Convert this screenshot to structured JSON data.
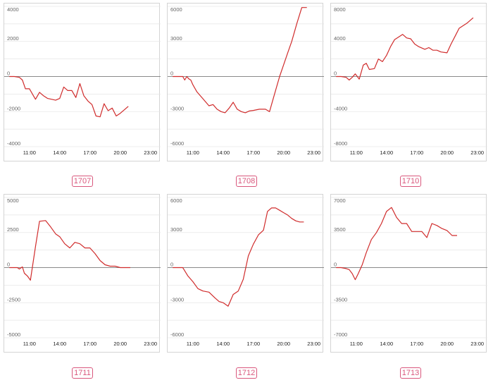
{
  "theme": {
    "line_color": "#d02c2c",
    "badge_color": "#d9577c",
    "grid_color": "#e6e6e6",
    "zero_color": "#8a8a8a"
  },
  "chart_data": [
    {
      "type": "line",
      "label": "1707",
      "ylim": [
        -4000,
        4000
      ],
      "yticks": [
        "4000",
        "2000",
        "0",
        "-2000",
        "-4000"
      ],
      "xlim": [
        8.5,
        24
      ],
      "xticks": [
        "11:00",
        "14:00",
        "17:00",
        "20:00",
        "23:00"
      ],
      "x": [
        9.0,
        9.5,
        10.0,
        10.3,
        10.6,
        11.0,
        11.3,
        11.6,
        12.0,
        12.4,
        12.8,
        13.2,
        13.6,
        14.0,
        14.4,
        14.8,
        15.2,
        15.6,
        16.0,
        16.4,
        16.8,
        17.2,
        17.6,
        18.0,
        18.4,
        18.8,
        19.2,
        19.6,
        20.0,
        20.4,
        20.8
      ],
      "y": [
        0,
        0,
        -50,
        -200,
        -700,
        -700,
        -1000,
        -1300,
        -900,
        -1100,
        -1250,
        -1300,
        -1350,
        -1250,
        -600,
        -800,
        -800,
        -1200,
        -400,
        -1100,
        -1400,
        -1600,
        -2250,
        -2300,
        -1550,
        -1950,
        -1800,
        -2250,
        -2100,
        -1900,
        -1700
      ]
    },
    {
      "type": "line",
      "label": "1708",
      "ylim": [
        -6000,
        6000
      ],
      "yticks": [
        "6000",
        "3000",
        "0",
        "-3000",
        "-6000"
      ],
      "xlim": [
        8.5,
        24
      ],
      "xticks": [
        "11:00",
        "14:00",
        "17:00",
        "20:00",
        "23:00"
      ],
      "x": [
        9.0,
        9.5,
        10.0,
        10.2,
        10.4,
        10.6,
        10.8,
        11.0,
        11.4,
        12.0,
        12.6,
        13.0,
        13.4,
        13.8,
        14.2,
        14.6,
        15.0,
        15.4,
        15.8,
        16.2,
        16.6,
        17.0,
        17.6,
        18.2,
        18.6,
        19.0,
        19.6,
        20.0,
        20.4,
        20.8,
        21.3,
        21.8,
        22.3
      ],
      "y": [
        0,
        0,
        0,
        -300,
        0,
        -200,
        -300,
        -700,
        -1300,
        -1900,
        -2500,
        -2400,
        -2800,
        -3000,
        -3100,
        -2700,
        -2200,
        -2800,
        -3000,
        -3100,
        -2950,
        -2900,
        -2800,
        -2800,
        -3000,
        -1800,
        0,
        1000,
        2000,
        3000,
        4500,
        5900,
        5900
      ]
    },
    {
      "type": "line",
      "label": "1710",
      "ylim": [
        -8000,
        8000
      ],
      "yticks": [
        "8000",
        "4000",
        "0",
        "-4000",
        "-8000"
      ],
      "xlim": [
        8.5,
        24
      ],
      "xticks": [
        "11:00",
        "14:00",
        "17:00",
        "20:00",
        "23:00"
      ],
      "x": [
        9.0,
        9.5,
        10.0,
        10.3,
        10.6,
        10.9,
        11.3,
        11.7,
        12.0,
        12.3,
        12.8,
        13.2,
        13.6,
        14.0,
        14.4,
        14.8,
        15.2,
        15.6,
        16.0,
        16.4,
        16.8,
        17.2,
        17.8,
        18.2,
        18.6,
        19.0,
        19.4,
        20.0,
        20.4,
        20.8,
        21.2,
        21.6,
        22.0,
        22.6
      ],
      "y": [
        0,
        0,
        -100,
        -400,
        -100,
        300,
        -300,
        1300,
        1500,
        800,
        900,
        2000,
        1700,
        2400,
        3400,
        4200,
        4500,
        4800,
        4400,
        4300,
        3700,
        3400,
        3100,
        3300,
        3000,
        3000,
        2800,
        2700,
        3700,
        4600,
        5500,
        5800,
        6100,
        6700
      ]
    },
    {
      "type": "line",
      "label": "1711",
      "ylim": [
        -5000,
        5000
      ],
      "yticks": [
        "5000",
        "2500",
        "0",
        "-2500",
        "-5000"
      ],
      "xlim": [
        8.5,
        24
      ],
      "xticks": [
        "11:00",
        "14:00",
        "17:00",
        "20:00",
        "23:00"
      ],
      "x": [
        9.0,
        9.4,
        9.8,
        10.0,
        10.3,
        10.5,
        10.8,
        11.1,
        11.6,
        12.0,
        12.6,
        13.1,
        13.6,
        14.0,
        14.5,
        15.0,
        15.5,
        16.0,
        16.5,
        17.0,
        17.5,
        18.0,
        18.5,
        19.0,
        19.5,
        20.0,
        20.5,
        21.0
      ],
      "y": [
        0,
        0,
        0,
        -100,
        50,
        -400,
        -600,
        -900,
        1500,
        3300,
        3350,
        2900,
        2400,
        2200,
        1700,
        1400,
        1800,
        1700,
        1400,
        1400,
        1000,
        500,
        200,
        100,
        100,
        0,
        0,
        0
      ]
    },
    {
      "type": "line",
      "label": "1712",
      "ylim": [
        -6000,
        6000
      ],
      "yticks": [
        "6000",
        "3000",
        "0",
        "-3000",
        "-6000"
      ],
      "xlim": [
        8.5,
        24
      ],
      "xticks": [
        "11:00",
        "14:00",
        "17:00",
        "20:00",
        "23:00"
      ],
      "x": [
        9.0,
        9.5,
        10.0,
        10.5,
        11.0,
        11.5,
        12.0,
        12.6,
        13.2,
        13.6,
        14.0,
        14.5,
        15.0,
        15.5,
        16.0,
        16.5,
        17.0,
        17.5,
        18.0,
        18.4,
        18.8,
        19.2,
        19.6,
        20.0,
        20.4,
        20.8,
        21.2,
        21.6,
        22.0
      ],
      "y": [
        0,
        0,
        0,
        -700,
        -1200,
        -1800,
        -2000,
        -2100,
        -2600,
        -2900,
        -3000,
        -3300,
        -2300,
        -2000,
        -1000,
        1000,
        2000,
        2800,
        3200,
        4800,
        5100,
        5100,
        4900,
        4700,
        4500,
        4200,
        4000,
        3900,
        3900
      ]
    },
    {
      "type": "line",
      "label": "1713",
      "ylim": [
        -7000,
        7000
      ],
      "yticks": [
        "7000",
        "3500",
        "0",
        "-3500",
        "-7000"
      ],
      "xlim": [
        8.5,
        24
      ],
      "xticks": [
        "11:00",
        "14:00",
        "17:00",
        "20:00",
        "23:00"
      ],
      "x": [
        9.0,
        9.5,
        10.0,
        10.3,
        10.6,
        10.9,
        11.2,
        11.6,
        12.0,
        12.5,
        13.0,
        13.5,
        14.0,
        14.5,
        15.0,
        15.5,
        16.0,
        16.5,
        17.0,
        17.5,
        18.0,
        18.5,
        19.0,
        19.5,
        20.0,
        20.5,
        21.0
      ],
      "y": [
        0,
        0,
        -100,
        -200,
        -600,
        -1200,
        -600,
        300,
        1500,
        2800,
        3500,
        4400,
        5600,
        6000,
        5000,
        4400,
        4400,
        3600,
        3600,
        3600,
        3000,
        4400,
        4200,
        3900,
        3700,
        3200,
        3200
      ]
    }
  ]
}
